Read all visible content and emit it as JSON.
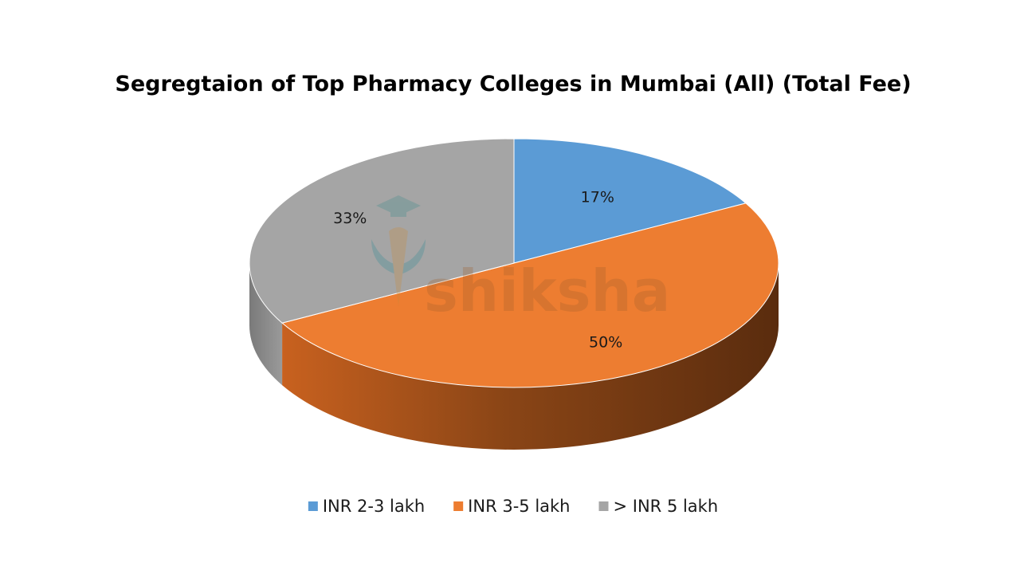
{
  "chart_data": {
    "type": "pie",
    "title": "Segregtaion of Top Pharmacy Colleges in Mumbai (All) (Total Fee)",
    "categories": [
      "INR 2-3 lakh",
      "INR 3-5 lakh",
      "> INR 5 lakh"
    ],
    "values": [
      17,
      50,
      33
    ],
    "data_labels": [
      "17%",
      "50%",
      "33%"
    ],
    "colors": [
      "#5b9bd5",
      "#ed7d31",
      "#a5a5a5"
    ],
    "style": "3d-pie",
    "legend_position": "bottom"
  },
  "watermark": {
    "text": "shiksha",
    "icon": "graduation-cap-logo-icon"
  }
}
